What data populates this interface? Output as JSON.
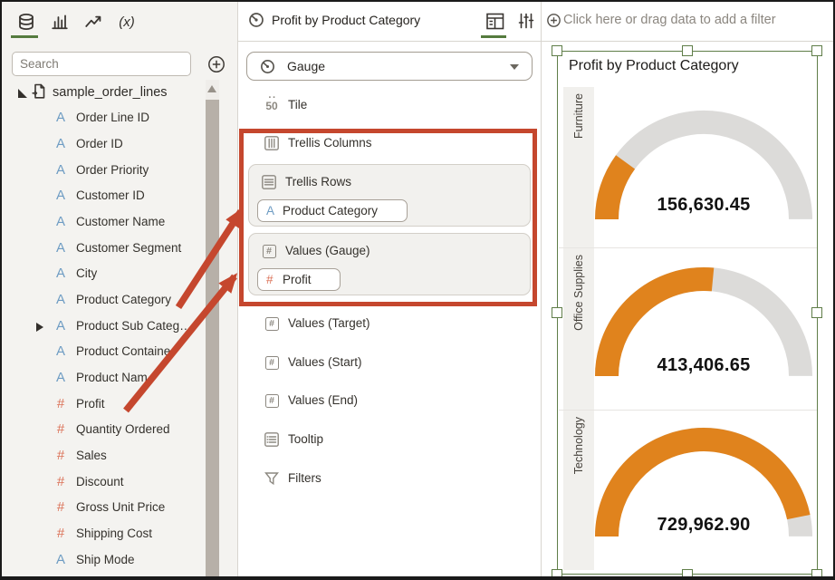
{
  "left_panel": {
    "tab_icons": [
      "database-icon",
      "bar-chart-icon",
      "trend-line-icon",
      "function-icon"
    ],
    "search": {
      "placeholder": "Search"
    },
    "dataset_name": "sample_order_lines",
    "fields": [
      {
        "icon": "A",
        "label": "Order Line ID"
      },
      {
        "icon": "A",
        "label": "Order ID"
      },
      {
        "icon": "A",
        "label": "Order Priority"
      },
      {
        "icon": "A",
        "label": "Customer ID"
      },
      {
        "icon": "A",
        "label": "Customer Name"
      },
      {
        "icon": "A",
        "label": "Customer Segment"
      },
      {
        "icon": "A",
        "label": "City"
      },
      {
        "icon": "A",
        "label": "Product Category"
      },
      {
        "icon": "A",
        "label": "Product Sub Categ…",
        "expandable": true
      },
      {
        "icon": "A",
        "label": "Product Containe"
      },
      {
        "icon": "A",
        "label": "Product Nam"
      },
      {
        "icon": "#",
        "label": "Profit"
      },
      {
        "icon": "#",
        "label": "Quantity Ordered"
      },
      {
        "icon": "#",
        "label": "Sales"
      },
      {
        "icon": "#",
        "label": "Discount"
      },
      {
        "icon": "#",
        "label": "Gross Unit Price"
      },
      {
        "icon": "#",
        "label": "Shipping Cost"
      },
      {
        "icon": "A",
        "label": "Ship Mode"
      }
    ]
  },
  "grammar_panel": {
    "title": "Profit by Product Category",
    "viz_type": "Gauge",
    "rows": {
      "tile": "Tile",
      "trellis_columns": "Trellis Columns",
      "trellis_rows": "Trellis Rows",
      "values_gauge": "Values (Gauge)",
      "values_target": "Values (Target)",
      "values_start": "Values (Start)",
      "values_end": "Values (End)",
      "tooltip": "Tooltip",
      "filters": "Filters"
    },
    "pills": {
      "trellis_rows_pill": {
        "icon": "A",
        "label": "Product Category"
      },
      "values_gauge_pill": {
        "icon": "#",
        "label": "Profit"
      }
    }
  },
  "canvas": {
    "filter_prompt": "Click here or drag data to add a filter",
    "viz_title": "Profit by Product Category"
  },
  "chart_data": {
    "type": "gauge",
    "title": "Profit by Product Category",
    "max": 780000,
    "rows": [
      {
        "category": "Furniture",
        "value": 156630.45,
        "display": "156,630.45"
      },
      {
        "category": "Office Supplies",
        "value": 413406.65,
        "display": "413,406.65"
      },
      {
        "category": "Technology",
        "value": 729962.9,
        "display": "729,962.90"
      }
    ]
  },
  "colors": {
    "accent_green": "#557B3E",
    "annotation_red": "#C5472E",
    "gauge_fill": "#E0831D",
    "gauge_track": "#DCDBD9",
    "attribute_blue": "#6E9CC3",
    "measure_salmon": "#DB7258"
  }
}
